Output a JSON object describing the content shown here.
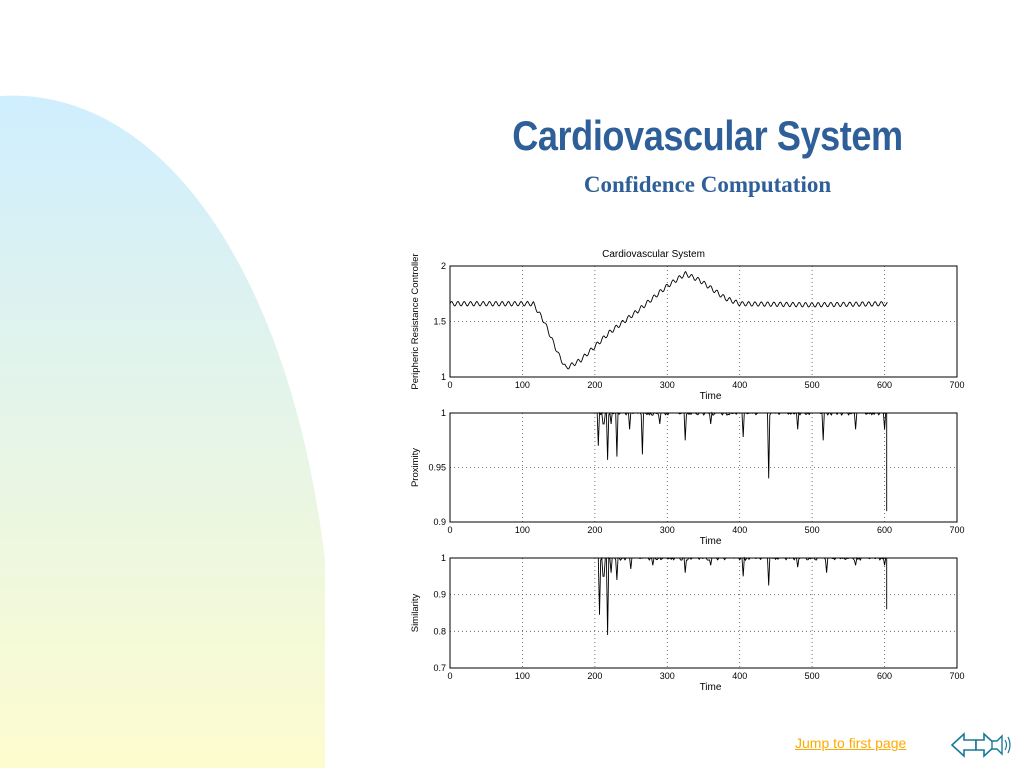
{
  "slide": {
    "title": "Cardiovascular System",
    "subtitle": "Confidence Computation",
    "jump_link": "Jump to first page",
    "nav_icons": [
      "back-arrow-icon",
      "forward-arrow-icon",
      "speaker-icon"
    ]
  },
  "colors": {
    "title": "#2f5f99",
    "link": "#ffaa00",
    "background_gradient": [
      "#cfeeff",
      "#fdfccf"
    ]
  },
  "chart_data": [
    {
      "type": "line",
      "title": "Cardiovascular System",
      "xlabel": "Time",
      "ylabel": "Peripheric Resistance Controller",
      "xlim": [
        0,
        700
      ],
      "ylim": [
        1,
        2
      ],
      "xticks": [
        0,
        100,
        200,
        300,
        400,
        500,
        600,
        700
      ],
      "yticks": [
        1,
        1.5,
        2
      ],
      "grid": true,
      "series": [
        {
          "values": [
            [
              0,
              1.66
            ],
            [
              115,
              1.66
            ],
            [
              130,
              1.5
            ],
            [
              150,
              1.2
            ],
            [
              160,
              1.08
            ],
            [
              180,
              1.15
            ],
            [
              220,
              1.4
            ],
            [
              260,
              1.6
            ],
            [
              300,
              1.82
            ],
            [
              325,
              1.93
            ],
            [
              345,
              1.87
            ],
            [
              380,
              1.71
            ],
            [
              400,
              1.66
            ],
            [
              500,
              1.65
            ],
            [
              600,
              1.66
            ],
            [
              605,
              1.65
            ]
          ]
        }
      ]
    },
    {
      "type": "line",
      "xlabel": "Time",
      "ylabel": "Proximity",
      "xlim": [
        0,
        700
      ],
      "ylim": [
        0.9,
        1
      ],
      "xticks": [
        0,
        100,
        200,
        300,
        400,
        500,
        600,
        700
      ],
      "yticks": [
        0.9,
        0.95,
        1
      ],
      "grid": true,
      "series": [
        {
          "values": [
            [
              200,
              1.0
            ],
            [
              205,
              0.97
            ],
            [
              212,
              0.99
            ],
            [
              218,
              0.957
            ],
            [
              222,
              0.99
            ],
            [
              230,
              0.96
            ],
            [
              248,
              0.985
            ],
            [
              265,
              0.962
            ],
            [
              290,
              0.99
            ],
            [
              325,
              0.975
            ],
            [
              360,
              0.99
            ],
            [
              405,
              0.978
            ],
            [
              440,
              0.94
            ],
            [
              480,
              0.985
            ],
            [
              515,
              0.975
            ],
            [
              560,
              0.985
            ],
            [
              600,
              0.985
            ],
            [
              603,
              0.91
            ]
          ]
        }
      ]
    },
    {
      "type": "line",
      "xlabel": "Time",
      "ylabel": "Similarity",
      "xlim": [
        0,
        700
      ],
      "ylim": [
        0.7,
        1
      ],
      "xticks": [
        0,
        100,
        200,
        300,
        400,
        500,
        600,
        700
      ],
      "yticks": [
        0.7,
        0.8,
        0.9,
        1
      ],
      "grid": true,
      "series": [
        {
          "values": [
            [
              200,
              1.0
            ],
            [
              206,
              0.845
            ],
            [
              212,
              0.95
            ],
            [
              218,
              0.79
            ],
            [
              222,
              0.96
            ],
            [
              230,
              0.94
            ],
            [
              250,
              0.97
            ],
            [
              280,
              0.98
            ],
            [
              325,
              0.96
            ],
            [
              360,
              0.98
            ],
            [
              405,
              0.95
            ],
            [
              440,
              0.925
            ],
            [
              480,
              0.975
            ],
            [
              520,
              0.96
            ],
            [
              560,
              0.98
            ],
            [
              600,
              0.98
            ],
            [
              603,
              0.86
            ]
          ]
        }
      ]
    }
  ]
}
